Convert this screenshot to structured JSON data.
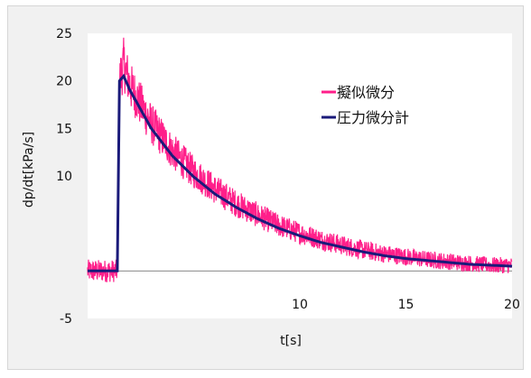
{
  "chart_data": {
    "type": "line",
    "xlabel": "t[s]",
    "ylabel": "dp/dt[kPa/s]",
    "xlim": [
      0,
      20
    ],
    "ylim": [
      -5,
      25
    ],
    "x_tick_labels": [
      "10",
      "15",
      "20"
    ],
    "y_tick_labels": [
      "25",
      "20",
      "15",
      "10",
      "-5"
    ],
    "grid": false,
    "legend_position": "center-right",
    "series": [
      {
        "name": "擬似微分",
        "color": "#ff1f8a",
        "style": "noisy",
        "x": [
          0,
          0.5,
          1.0,
          1.4,
          1.5,
          1.7,
          2,
          3,
          4,
          5,
          6,
          7,
          8,
          9,
          10,
          11,
          12,
          13,
          14,
          15,
          16,
          17,
          18,
          19,
          20
        ],
        "y": [
          0,
          0,
          0,
          0,
          20,
          21.8,
          19.5,
          15.5,
          12.6,
          10.4,
          8.6,
          7.1,
          5.9,
          4.8,
          4.0,
          3.3,
          2.7,
          2.2,
          1.8,
          1.5,
          1.2,
          1.0,
          0.8,
          0.6,
          0.6
        ]
      },
      {
        "name": "圧力微分計",
        "color": "#1a1a7a",
        "style": "smooth",
        "x": [
          0,
          0.5,
          1.0,
          1.4,
          1.5,
          1.7,
          2,
          3,
          4,
          5,
          6,
          7,
          8,
          9,
          10,
          11,
          12,
          13,
          14,
          15,
          16,
          17,
          18,
          19,
          20
        ],
        "y": [
          0,
          0,
          0,
          0,
          20,
          20.5,
          19.0,
          15.0,
          12.1,
          9.9,
          8.1,
          6.7,
          5.5,
          4.5,
          3.7,
          3.0,
          2.5,
          2.0,
          1.6,
          1.3,
          1.1,
          0.9,
          0.7,
          0.6,
          0.5
        ]
      }
    ]
  }
}
